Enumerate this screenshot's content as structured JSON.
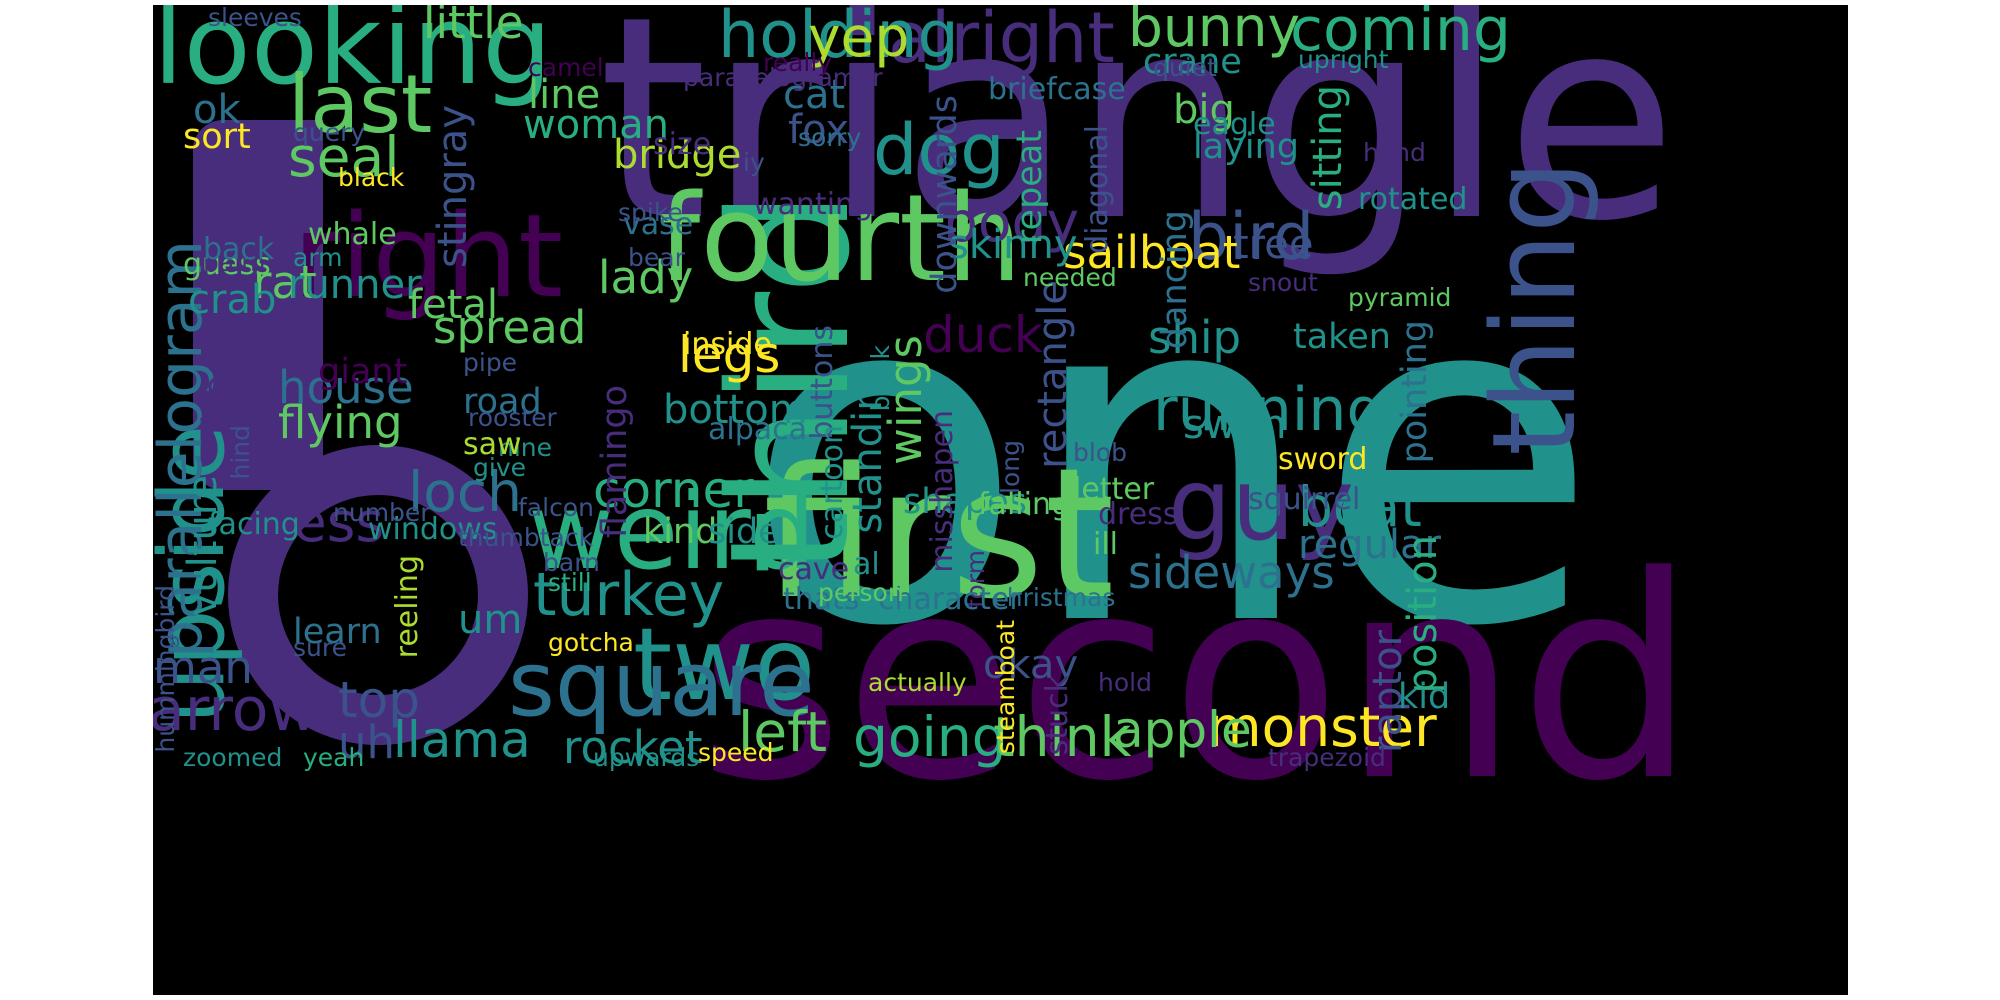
{
  "palette": {
    "background": "#000000",
    "dark-purple": "#440154",
    "purple": "#472d7b",
    "indigo": "#3b528b",
    "blue": "#2c728e",
    "teal": "#21918c",
    "green-teal": "#28ae80",
    "green": "#5ec962",
    "lime": "#addc30",
    "yellow": "#fde725"
  },
  "words": [
    {
      "text": "one",
      "color": "#21918c"
    },
    {
      "text": "triangle",
      "color": "#472d7b"
    },
    {
      "text": "second",
      "color": "#440154"
    },
    {
      "text": "first",
      "color": "#5ec962"
    },
    {
      "text": "third",
      "color": "#28ae80"
    },
    {
      "text": "fourth",
      "color": "#5ec962"
    },
    {
      "text": "looking",
      "color": "#28ae80"
    },
    {
      "text": "right",
      "color": "#440154"
    },
    {
      "text": "thing",
      "color": "#3b528b"
    },
    {
      "text": "weird",
      "color": "#28ae80"
    },
    {
      "text": "two",
      "color": "#21918c"
    },
    {
      "text": "guy",
      "color": "#472d7b"
    },
    {
      "text": "square",
      "color": "#2c728e"
    },
    {
      "text": "upside",
      "color": "#21918c"
    },
    {
      "text": "last",
      "color": "#5ec962"
    },
    {
      "text": "alright",
      "color": "#472d7b"
    },
    {
      "text": "holding",
      "color": "#21918c"
    },
    {
      "text": "coming",
      "color": "#28ae80"
    },
    {
      "text": "bunny",
      "color": "#5ec962"
    },
    {
      "text": "yep",
      "color": "#addc30"
    },
    {
      "text": "little",
      "color": "#5ec962"
    },
    {
      "text": "dog",
      "color": "#21918c"
    },
    {
      "text": "bird",
      "color": "#3b528b"
    },
    {
      "text": "seal",
      "color": "#5ec962"
    },
    {
      "text": "body",
      "color": "#472d7b"
    },
    {
      "text": "parallelogram",
      "color": "#2c728e"
    },
    {
      "text": "running",
      "color": "#21918c"
    },
    {
      "text": "arrow",
      "color": "#472d7b"
    },
    {
      "text": "turkey",
      "color": "#21918c"
    },
    {
      "text": "monster",
      "color": "#fde725"
    },
    {
      "text": "left",
      "color": "#5ec962"
    },
    {
      "text": "going",
      "color": "#28ae80"
    },
    {
      "text": "think",
      "color": "#5ec962"
    },
    {
      "text": "apple",
      "color": "#5ec962"
    },
    {
      "text": "loch",
      "color": "#2c728e"
    },
    {
      "text": "ness",
      "color": "#472d7b"
    },
    {
      "text": "boat",
      "color": "#21918c"
    },
    {
      "text": "corner",
      "color": "#28ae80"
    },
    {
      "text": "legs",
      "color": "#fde725"
    },
    {
      "text": "house",
      "color": "#2c728e"
    },
    {
      "text": "flying",
      "color": "#5ec962"
    },
    {
      "text": "sailboat",
      "color": "#fde725"
    },
    {
      "text": "rat",
      "color": "#5ec962"
    },
    {
      "text": "runner",
      "color": "#21918c"
    },
    {
      "text": "spread",
      "color": "#5ec962"
    },
    {
      "text": "lady",
      "color": "#5ec962"
    },
    {
      "text": "duck",
      "color": "#440154"
    },
    {
      "text": "ship",
      "color": "#21918c"
    },
    {
      "text": "swan",
      "color": "#21918c"
    },
    {
      "text": "sideways",
      "color": "#2c728e"
    },
    {
      "text": "tree",
      "color": "#3b528b"
    },
    {
      "text": "skinny",
      "color": "#21918c"
    },
    {
      "text": "wings",
      "color": "#5ec962"
    },
    {
      "text": "standing",
      "color": "#21918c"
    },
    {
      "text": "top",
      "color": "#3b528b"
    },
    {
      "text": "uh",
      "color": "#3b528b"
    },
    {
      "text": "llama",
      "color": "#21918c"
    },
    {
      "text": "rocket",
      "color": "#21918c"
    },
    {
      "text": "man",
      "color": "#3b528b"
    },
    {
      "text": "head",
      "color": "#472d7b"
    },
    {
      "text": "vulture",
      "color": "#21918c"
    },
    {
      "text": "crab",
      "color": "#21918c"
    },
    {
      "text": "fetal",
      "color": "#5ec962"
    },
    {
      "text": "woman",
      "color": "#28ae80"
    },
    {
      "text": "line",
      "color": "#5ec962"
    },
    {
      "text": "bridge",
      "color": "#addc30"
    },
    {
      "text": "cat",
      "color": "#2c728e"
    },
    {
      "text": "fox",
      "color": "#3b528b"
    },
    {
      "text": "crane",
      "color": "#21918c"
    },
    {
      "text": "big",
      "color": "#5ec962"
    },
    {
      "text": "sitting",
      "color": "#28ae80"
    },
    {
      "text": "laying",
      "color": "#21918c"
    },
    {
      "text": "eagle",
      "color": "#21918c"
    },
    {
      "text": "ok",
      "color": "#2c728e"
    },
    {
      "text": "sort",
      "color": "#fde725"
    },
    {
      "text": "stingray",
      "color": "#3b528b"
    },
    {
      "text": "downwards",
      "color": "#3b528b"
    },
    {
      "text": "repeat",
      "color": "#28ae80"
    },
    {
      "text": "diagonal",
      "color": "#3b528b"
    },
    {
      "text": "rectangle",
      "color": "#3b528b"
    },
    {
      "text": "dancing",
      "color": "#2c728e"
    },
    {
      "text": "taken",
      "color": "#21918c"
    },
    {
      "text": "pointing",
      "color": "#2c728e"
    },
    {
      "text": "regular",
      "color": "#2c728e"
    },
    {
      "text": "position",
      "color": "#28ae80"
    },
    {
      "text": "raptor",
      "color": "#3b528b"
    },
    {
      "text": "kid",
      "color": "#21918c"
    },
    {
      "text": "shapes",
      "color": "#21918c"
    },
    {
      "text": "falling",
      "color": "#5ec962"
    },
    {
      "text": "letter",
      "color": "#5ec962"
    },
    {
      "text": "dress",
      "color": "#472d7b"
    },
    {
      "text": "sword",
      "color": "#fde725"
    },
    {
      "text": "squirrel",
      "color": "#3b528b"
    },
    {
      "text": "okay",
      "color": "#3b528b"
    },
    {
      "text": "bottom",
      "color": "#21918c"
    },
    {
      "text": "road",
      "color": "#2c728e"
    },
    {
      "text": "kind",
      "color": "#5ec962"
    },
    {
      "text": "side",
      "color": "#21918c"
    },
    {
      "text": "um",
      "color": "#21918c"
    },
    {
      "text": "learn",
      "color": "#2c728e"
    },
    {
      "text": "facing",
      "color": "#21918c"
    },
    {
      "text": "windows",
      "color": "#21918c"
    },
    {
      "text": "reeling",
      "color": "#addc30"
    },
    {
      "text": "giant",
      "color": "#440154"
    },
    {
      "text": "flamingo",
      "color": "#472d7b"
    },
    {
      "text": "inside",
      "color": "#fde725"
    },
    {
      "text": "alpaca",
      "color": "#2c728e"
    },
    {
      "text": "cave",
      "color": "#472d7b"
    },
    {
      "text": "al",
      "color": "#21918c"
    },
    {
      "text": "buttons",
      "color": "#3b528b"
    },
    {
      "text": "cartoon",
      "color": "#21918c"
    },
    {
      "text": "block",
      "color": "#21918c"
    },
    {
      "text": "misshapen",
      "color": "#472d7b"
    },
    {
      "text": "long",
      "color": "#3b528b"
    },
    {
      "text": "blob",
      "color": "#3b528b"
    },
    {
      "text": "form",
      "color": "#472d7b"
    },
    {
      "text": "character",
      "color": "#2c728e"
    },
    {
      "text": "christmas",
      "color": "#2c728e"
    },
    {
      "text": "thats",
      "color": "#2c728e"
    },
    {
      "text": "person",
      "color": "#5ec962"
    },
    {
      "text": "ill",
      "color": "#5ec962"
    },
    {
      "text": "steamboat",
      "color": "#fde725"
    },
    {
      "text": "stuck",
      "color": "#472d7b"
    },
    {
      "text": "actually",
      "color": "#addc30"
    },
    {
      "text": "hold",
      "color": "#472d7b"
    },
    {
      "text": "trapezoid",
      "color": "#472d7b"
    },
    {
      "text": "upwards",
      "color": "#21918c"
    },
    {
      "text": "speed",
      "color": "#fde725"
    },
    {
      "text": "yeah",
      "color": "#28ae80"
    },
    {
      "text": "zoomed",
      "color": "#21918c"
    },
    {
      "text": "thumbtack",
      "color": "#3b528b"
    },
    {
      "text": "falcon",
      "color": "#3b528b"
    },
    {
      "text": "give",
      "color": "#21918c"
    },
    {
      "text": "nine",
      "color": "#21918c"
    },
    {
      "text": "saw",
      "color": "#addc30"
    },
    {
      "text": "rooster",
      "color": "#3b528b"
    },
    {
      "text": "pipe",
      "color": "#3b528b"
    },
    {
      "text": "hind",
      "color": "#3b528b"
    },
    {
      "text": "number",
      "color": "#3b528b"
    },
    {
      "text": "barn",
      "color": "#3b528b"
    },
    {
      "text": "still",
      "color": "#28ae80"
    },
    {
      "text": "gotcha",
      "color": "#fde725"
    },
    {
      "text": "sure",
      "color": "#3b528b"
    },
    {
      "text": "hummingbird",
      "color": "#3b528b"
    },
    {
      "text": "guess",
      "color": "#5ec962"
    },
    {
      "text": "palm",
      "color": "#472d7b"
    },
    {
      "text": "back",
      "color": "#2c728e"
    },
    {
      "text": "arm",
      "color": "#21918c"
    },
    {
      "text": "whale",
      "color": "#5ec962"
    },
    {
      "text": "black",
      "color": "#fde725"
    },
    {
      "text": "query",
      "color": "#3b528b"
    },
    {
      "text": "vase",
      "color": "#2c728e"
    },
    {
      "text": "bear",
      "color": "#3b528b"
    },
    {
      "text": "spike",
      "color": "#3b528b"
    },
    {
      "text": "wanting",
      "color": "#472d7b"
    },
    {
      "text": "size",
      "color": "#472d7b"
    },
    {
      "text": "iy",
      "color": "#3b528b"
    },
    {
      "text": "sorry",
      "color": "#2c728e"
    },
    {
      "text": "briefcase",
      "color": "#2c728e"
    },
    {
      "text": "parallelogramor",
      "color": "#472d7b"
    },
    {
      "text": "really",
      "color": "#440154"
    },
    {
      "text": "camel",
      "color": "#440154"
    },
    {
      "text": "sleeves",
      "color": "#3b528b"
    },
    {
      "text": "quiet",
      "color": "#3b528b"
    },
    {
      "text": "upright",
      "color": "#21918c"
    },
    {
      "text": "hand",
      "color": "#472d7b"
    },
    {
      "text": "rotated",
      "color": "#21918c"
    },
    {
      "text": "needed",
      "color": "#5ec962"
    },
    {
      "text": "snout",
      "color": "#472d7b"
    },
    {
      "text": "pyramid",
      "color": "#5ec962"
    }
  ]
}
